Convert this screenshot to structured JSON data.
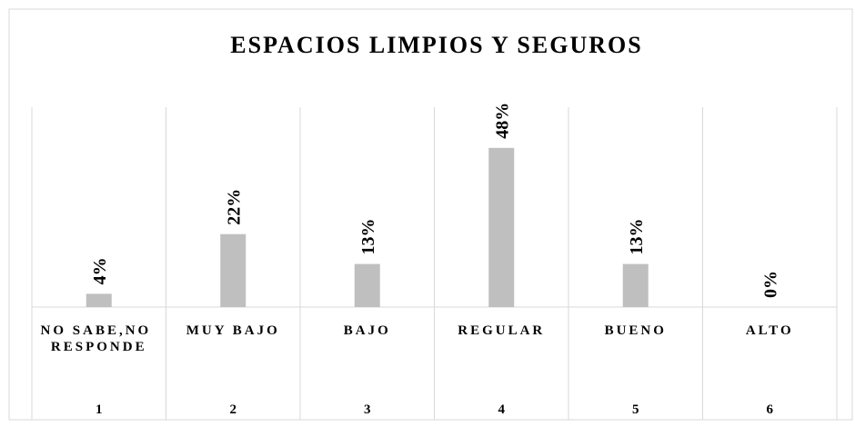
{
  "chart_data": {
    "type": "bar",
    "title": "ESPACIOS LIMPIOS Y SEGUROS",
    "categories": [
      "NO SABE,NO RESPONDE",
      "MUY BAJO",
      "BAJO",
      "REGULAR",
      "BUENO",
      "ALTO"
    ],
    "category_numbers": [
      1,
      2,
      3,
      4,
      5,
      6
    ],
    "values": [
      4,
      22,
      13,
      48,
      13,
      0
    ],
    "value_labels": [
      "4%",
      "22%",
      "13%",
      "48%",
      "13%",
      "0%"
    ],
    "color": "#bfbfbf",
    "grid": true
  }
}
